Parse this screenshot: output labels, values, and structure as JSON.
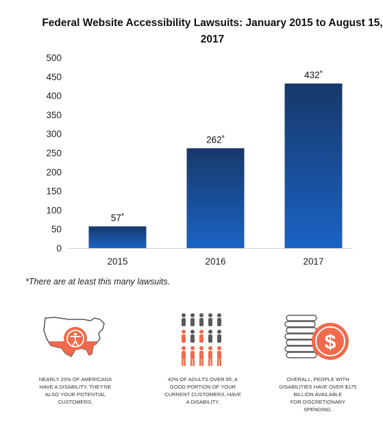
{
  "chart_data": {
    "type": "bar",
    "title": "Federal Website Accessibility Lawsuits: January 2015 to August 15, 2017",
    "categories": [
      "2015",
      "2016",
      "2017"
    ],
    "values": [
      57,
      262,
      432
    ],
    "value_labels": [
      "57",
      "262",
      "432"
    ],
    "label_suffix": "*",
    "ylim": [
      0,
      500
    ],
    "yticks": [
      0,
      50,
      100,
      150,
      200,
      250,
      300,
      350,
      400,
      450,
      500
    ],
    "grid": false,
    "legend": "none",
    "bar_color_top": "#17386a",
    "bar_color_bottom": "#1a63c4"
  },
  "footnote": "*There are at least this many lawsuits.",
  "stats": [
    {
      "icon": "us-map-accessibility-icon",
      "text_lines": [
        "Nearly 20% of Americans",
        "have a disability. They're",
        "also your potential",
        "customers."
      ]
    },
    {
      "icon": "people-group-icon",
      "text_lines": [
        "42% of adults over 65, a",
        "good portion of your",
        "current customers, have",
        "a disability."
      ]
    },
    {
      "icon": "coins-dollar-icon",
      "text_lines": [
        "Overall, people with",
        "disabilities have over $175",
        "billion available",
        "for discretionary",
        "spending."
      ]
    }
  ],
  "colors": {
    "accent": "#f06a4c",
    "grey": "#5a5a5a"
  }
}
